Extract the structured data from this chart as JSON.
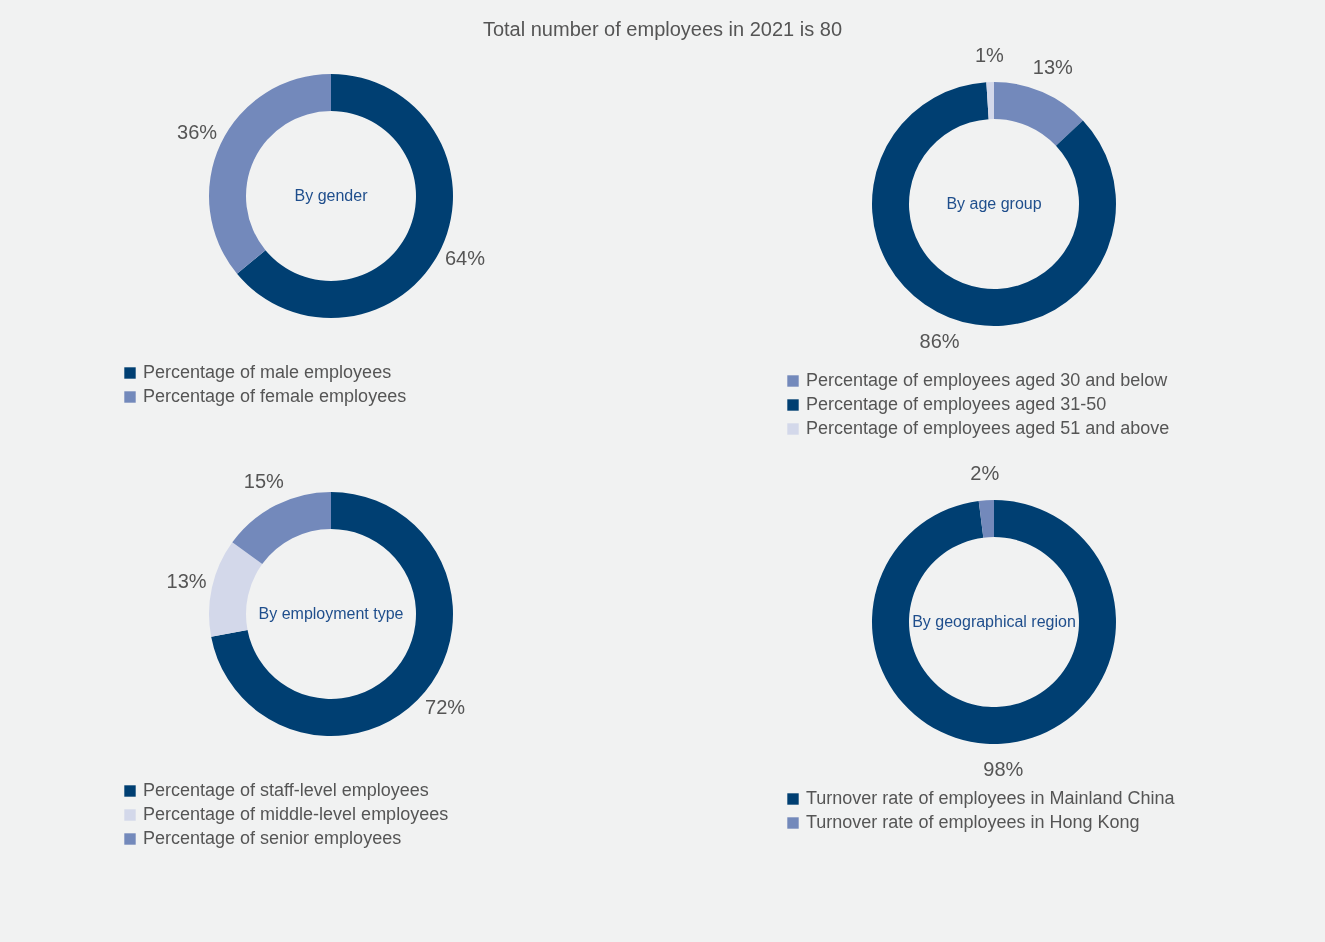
{
  "chart_data": [
    {
      "type": "donut",
      "title": "By gender",
      "annotations": [
        "Total number of employees in 2021 is 80"
      ],
      "categories": [
        "Percentage of male employees",
        "Percentage of female employees"
      ],
      "values": [
        64,
        36
      ],
      "colors": [
        "#003f72",
        "#7389bb"
      ],
      "value_labels": [
        "64%",
        "36%"
      ],
      "legend": "bottom"
    },
    {
      "type": "donut",
      "title": "By age group",
      "categories": [
        "Percentage of employees aged 30 and below",
        "Percentage of employees aged 31-50",
        "Percentage of employees aged 51 and above"
      ],
      "values": [
        13,
        86,
        1
      ],
      "colors": [
        "#7389bb",
        "#003f72",
        "#d3d8ea"
      ],
      "value_labels": [
        "13%",
        "86%",
        "1%"
      ],
      "legend": "bottom"
    },
    {
      "type": "donut",
      "title": "By employment type",
      "categories": [
        "Percentage of staff-level employees",
        "Percentage of middle-level employees",
        "Percentage of senior employees"
      ],
      "values": [
        72,
        13,
        15
      ],
      "colors": [
        "#003f72",
        "#d3d8ea",
        "#7389bb"
      ],
      "value_labels": [
        "72%",
        "13%",
        "15%"
      ],
      "legend": "bottom"
    },
    {
      "type": "donut",
      "title": "By geographical region",
      "categories": [
        "Turnover rate of employees in Mainland China",
        "Turnover rate of employees in Hong Kong"
      ],
      "values": [
        98,
        2
      ],
      "colors": [
        "#003f72",
        "#7389bb"
      ],
      "value_labels": [
        "98%",
        "2%"
      ],
      "legend": "bottom"
    }
  ]
}
